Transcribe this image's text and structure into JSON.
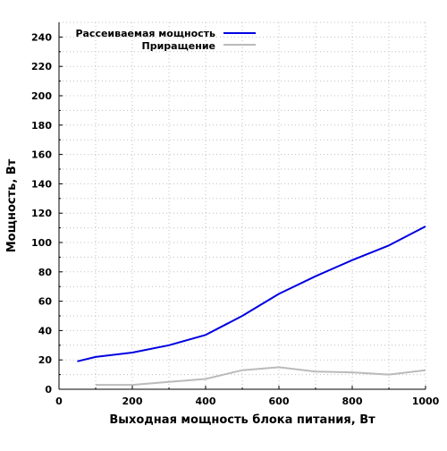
{
  "chart_data": {
    "type": "line",
    "title": "",
    "xlabel": "Выходная мощность блока питания, Вт",
    "ylabel": "Мощность, Вт",
    "xlim": [
      0,
      1000
    ],
    "ylim": [
      0,
      250
    ],
    "xticks": [
      0,
      200,
      400,
      600,
      800,
      1000
    ],
    "yticks": [
      0,
      20,
      40,
      60,
      80,
      100,
      120,
      140,
      160,
      180,
      200,
      220,
      240
    ],
    "grid": true,
    "legend_position": "top-left",
    "series": [
      {
        "name": "Рассеиваемая мощность",
        "color": "#0000e0",
        "x": [
          50,
          100,
          200,
          300,
          400,
          500,
          600,
          700,
          800,
          900,
          1000
        ],
        "y": [
          19,
          22,
          25,
          30,
          37,
          50,
          65,
          77,
          88,
          98,
          111
        ]
      },
      {
        "name": "Приращение",
        "color": "#bbbbbb",
        "x": [
          100,
          200,
          300,
          400,
          500,
          600,
          700,
          800,
          900,
          1000
        ],
        "y": [
          3,
          3,
          5,
          7,
          13,
          15,
          12,
          11.5,
          10,
          13
        ]
      }
    ]
  }
}
